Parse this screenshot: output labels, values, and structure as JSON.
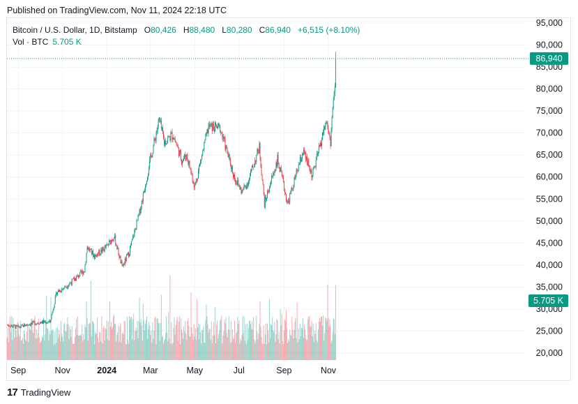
{
  "published": "Published on TradingView.com, Nov 11, 2024 22:18 UTC",
  "legend": {
    "symbol": "Bitcoin / U.S. Dollar, 1D, Bitstamp",
    "o_label": "O",
    "o": "80,426",
    "h_label": "H",
    "h": "88,480",
    "l_label": "L",
    "l": "80,280",
    "c_label": "C",
    "c": "86,940",
    "change": "+6,515 (+8.10%)"
  },
  "vol_legend": {
    "label": "Vol · BTC",
    "value": "5.705 K"
  },
  "price_badge": "86,940",
  "volume_badge": "5.705 K",
  "footer": {
    "logo": "17",
    "brand": "TradingView"
  },
  "colors": {
    "up": "#089981",
    "down": "#f23645",
    "badge": "#089981",
    "grid": "#f0f3fa"
  },
  "chart_data": {
    "type": "candlestick",
    "y_ticks": [
      "95,000",
      "90,000",
      "85,000",
      "80,000",
      "75,000",
      "70,000",
      "65,000",
      "60,000",
      "55,000",
      "50,000",
      "45,000",
      "40,000",
      "35,000",
      "30,000",
      "25,000",
      "20,000"
    ],
    "ylim": [
      18000,
      97000
    ],
    "x_ticks": [
      "Sep",
      "Nov",
      "2024",
      "Mar",
      "May",
      "Jul",
      "Sep",
      "Nov"
    ],
    "grid": true,
    "last_close": 86940,
    "last_volume_k": 5.705,
    "close_path": [
      {
        "date": "2023-08-17",
        "close": 26400
      },
      {
        "date": "2023-09-01",
        "close": 25800
      },
      {
        "date": "2023-09-15",
        "close": 26600
      },
      {
        "date": "2023-10-01",
        "close": 27000
      },
      {
        "date": "2023-10-15",
        "close": 27100
      },
      {
        "date": "2023-10-24",
        "close": 33900
      },
      {
        "date": "2023-11-01",
        "close": 34600
      },
      {
        "date": "2023-11-15",
        "close": 36400
      },
      {
        "date": "2023-12-01",
        "close": 38700
      },
      {
        "date": "2023-12-05",
        "close": 44100
      },
      {
        "date": "2023-12-15",
        "close": 42000
      },
      {
        "date": "2024-01-01",
        "close": 44200
      },
      {
        "date": "2024-01-11",
        "close": 46600
      },
      {
        "date": "2024-01-22",
        "close": 39500
      },
      {
        "date": "2024-02-01",
        "close": 43000
      },
      {
        "date": "2024-02-15",
        "close": 51900
      },
      {
        "date": "2024-02-28",
        "close": 62500
      },
      {
        "date": "2024-03-05",
        "close": 67000
      },
      {
        "date": "2024-03-13",
        "close": 73000
      },
      {
        "date": "2024-03-20",
        "close": 67900
      },
      {
        "date": "2024-04-01",
        "close": 69700
      },
      {
        "date": "2024-04-13",
        "close": 63900
      },
      {
        "date": "2024-04-20",
        "close": 64900
      },
      {
        "date": "2024-05-01",
        "close": 57800
      },
      {
        "date": "2024-05-20",
        "close": 71400
      },
      {
        "date": "2024-06-05",
        "close": 71100
      },
      {
        "date": "2024-06-24",
        "close": 60200
      },
      {
        "date": "2024-07-05",
        "close": 56600
      },
      {
        "date": "2024-07-14",
        "close": 59200
      },
      {
        "date": "2024-07-29",
        "close": 66800
      },
      {
        "date": "2024-08-05",
        "close": 54000
      },
      {
        "date": "2024-08-23",
        "close": 64000
      },
      {
        "date": "2024-09-06",
        "close": 53900
      },
      {
        "date": "2024-09-27",
        "close": 65800
      },
      {
        "date": "2024-10-10",
        "close": 60300
      },
      {
        "date": "2024-10-29",
        "close": 72700
      },
      {
        "date": "2024-11-04",
        "close": 68000
      },
      {
        "date": "2024-11-07",
        "close": 75800
      },
      {
        "date": "2024-11-10",
        "close": 80400
      },
      {
        "date": "2024-11-11",
        "close": 86940
      }
    ]
  }
}
